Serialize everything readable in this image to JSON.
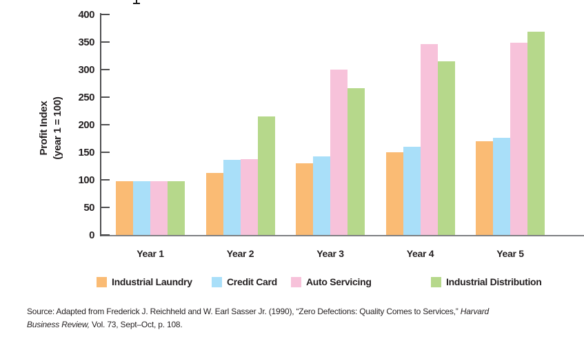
{
  "chart_data": {
    "type": "bar",
    "title": "",
    "ylabel": "Profit Index (year 1 = 100)",
    "ylabel_lines": [
      "Profit Index",
      "(year 1 = 100)"
    ],
    "categories": [
      "Year 1",
      "Year 2",
      "Year 3",
      "Year 4",
      "Year 5"
    ],
    "series": [
      {
        "name": "Industrial Laundry",
        "color": "#FABB74",
        "values": [
          97,
          112,
          130,
          150,
          170
        ]
      },
      {
        "name": "Credit Card",
        "color": "#A9DFF9",
        "values": [
          97,
          136,
          142,
          160,
          176
        ]
      },
      {
        "name": "Auto Servicing",
        "color": "#F7C2DA",
        "values": [
          97,
          137,
          300,
          346,
          349
        ]
      },
      {
        "name": "Industrial Distribution",
        "color": "#B6D88B",
        "values": [
          97,
          215,
          266,
          315,
          369
        ]
      }
    ],
    "ylim": [
      0,
      400
    ],
    "ytick_step": 50,
    "yticks": [
      0,
      50,
      100,
      150,
      200,
      250,
      300,
      350,
      400
    ],
    "grid": false,
    "legend_position": "bottom"
  },
  "source": {
    "line1_text": "Source: Adapted from Frederick J. Reichheld and W. Earl Sasser Jr. (1990), “Zero Defections: Quality Comes to Services,” ",
    "line1_italic": "Harvard",
    "line2_italic": "Business Review,",
    "line2_text": " Vol. 73, Sept–Oct, p. 108."
  }
}
